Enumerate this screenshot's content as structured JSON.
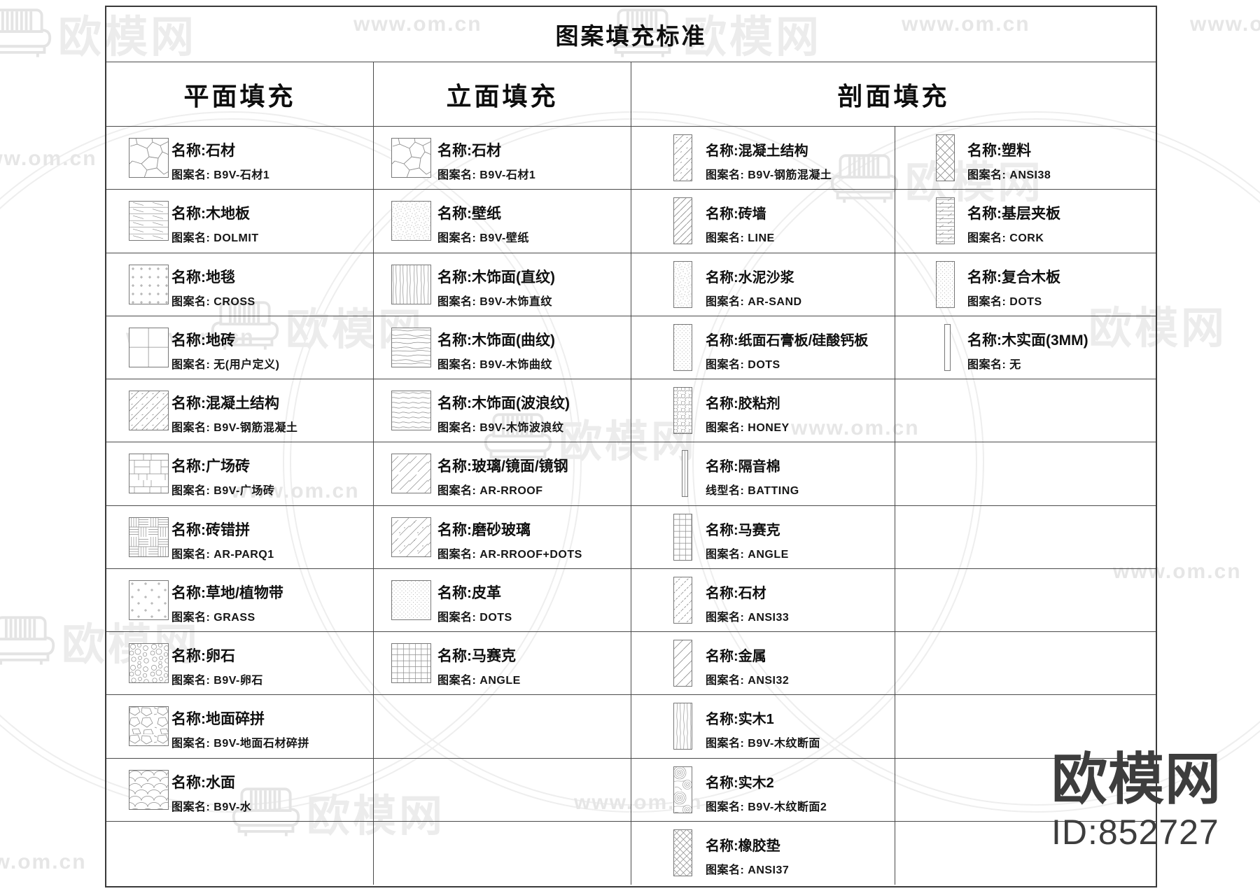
{
  "title": "图案填充标准",
  "rows_per_column": 12,
  "colors": {
    "grid_line": "#4a4a4a",
    "outer_border": "#3a3a3a",
    "text": "#101010",
    "pattern_stroke": "#8d8d8d",
    "watermark_light": "#ececec",
    "watermark_dark": "#3d3d3d"
  },
  "columns": [
    {
      "header": "平面填充",
      "items": [
        {
          "name_text": "名称:石材",
          "code_text": "图案名: B9V-石材1",
          "pattern": "stone",
          "swatch": "square"
        },
        {
          "name_text": "名称:木地板",
          "code_text": "图案名: DOLMIT",
          "pattern": "dolmit",
          "swatch": "square"
        },
        {
          "name_text": "名称:地毯",
          "code_text": "图案名: CROSS",
          "pattern": "cross",
          "swatch": "square"
        },
        {
          "name_text": "名称:地砖",
          "code_text": "图案名: 无(用户定义)",
          "pattern": "quad",
          "swatch": "square"
        },
        {
          "name_text": "名称:混凝土结构",
          "code_text": "图案名: B9V-钢筋混凝土",
          "pattern": "rebar",
          "swatch": "square"
        },
        {
          "name_text": "名称:广场砖",
          "code_text": "图案名: B9V-广场砖",
          "pattern": "plaza",
          "swatch": "square"
        },
        {
          "name_text": "名称:砖错拼",
          "code_text": "图案名: AR-PARQ1",
          "pattern": "parquet",
          "swatch": "square"
        },
        {
          "name_text": "名称:草地/植物带",
          "code_text": "图案名: GRASS",
          "pattern": "grass",
          "swatch": "square"
        },
        {
          "name_text": "名称:卵石",
          "code_text": "图案名: B9V-卵石",
          "pattern": "pebble",
          "swatch": "square"
        },
        {
          "name_text": "名称:地面碎拼",
          "code_text": "图案名: B9V-地面石材碎拼",
          "pattern": "crazy",
          "swatch": "square"
        },
        {
          "name_text": "名称:水面",
          "code_text": "图案名: B9V-水",
          "pattern": "water",
          "swatch": "square"
        }
      ]
    },
    {
      "header": "立面填充",
      "items": [
        {
          "name_text": "名称:石材",
          "code_text": "图案名: B9V-石材1",
          "pattern": "stone",
          "swatch": "square"
        },
        {
          "name_text": "名称:壁纸",
          "code_text": "图案名: B9V-壁纸",
          "pattern": "stipple",
          "swatch": "square"
        },
        {
          "name_text": "名称:木饰面(直纹)",
          "code_text": "图案名: B9V-木饰直纹",
          "pattern": "woodv",
          "swatch": "square"
        },
        {
          "name_text": "名称:木饰面(曲纹)",
          "code_text": "图案名: B9V-木饰曲纹",
          "pattern": "woodcurve",
          "swatch": "square"
        },
        {
          "name_text": "名称:木饰面(波浪纹)",
          "code_text": "图案名: B9V-木饰波浪纹",
          "pattern": "wave",
          "swatch": "square"
        },
        {
          "name_text": "名称:玻璃/镜面/镜钢",
          "code_text": "图案名: AR-RROOF",
          "pattern": "glass",
          "swatch": "square"
        },
        {
          "name_text": "名称:磨砂玻璃",
          "code_text": "图案名: AR-RROOF+DOTS",
          "pattern": "glassdots",
          "swatch": "square"
        },
        {
          "name_text": "名称:皮革",
          "code_text": "图案名: DOTS",
          "pattern": "dotsfine",
          "swatch": "square"
        },
        {
          "name_text": "名称:马赛克",
          "code_text": "图案名: ANGLE",
          "pattern": "anglegrid",
          "swatch": "square"
        }
      ]
    },
    {
      "header": "剖面填充",
      "subcolumns": [
        {
          "items": [
            {
              "name_text": "名称:混凝土结构",
              "code_text": "图案名: B9V-钢筋混凝土",
              "pattern": "rebar",
              "swatch": "tall"
            },
            {
              "name_text": "名称:砖墙",
              "code_text": "图案名: LINE",
              "pattern": "linehatch",
              "swatch": "tall"
            },
            {
              "name_text": "名称:水泥沙浆",
              "code_text": "图案名: AR-SAND",
              "pattern": "stipple",
              "swatch": "tall"
            },
            {
              "name_text": "名称:纸面石膏板/硅酸钙板",
              "code_text": "图案名: DOTS",
              "pattern": "dotsfine",
              "swatch": "tall"
            },
            {
              "name_text": "名称:胶粘剂",
              "code_text": "图案名: HONEY",
              "pattern": "honey",
              "swatch": "tall"
            },
            {
              "name_text": "名称:隔音棉",
              "code_text": "线型名: BATTING",
              "pattern": "vline",
              "swatch": "thin"
            },
            {
              "name_text": "名称:马赛克",
              "code_text": "图案名: ANGLE",
              "pattern": "anglegrid",
              "swatch": "tall"
            },
            {
              "name_text": "名称:石材",
              "code_text": "图案名: ANSI33",
              "pattern": "ansi33",
              "swatch": "tall"
            },
            {
              "name_text": "名称:金属",
              "code_text": "图案名: ANSI32",
              "pattern": "ansi32",
              "swatch": "tall"
            },
            {
              "name_text": "名称:实木1",
              "code_text": "图案名: B9V-木纹断面",
              "pattern": "woodsec",
              "swatch": "tall"
            },
            {
              "name_text": "名称:实木2",
              "code_text": "图案名: B9V-木纹断面2",
              "pattern": "burl",
              "swatch": "tall"
            },
            {
              "name_text": "名称:橡胶垫",
              "code_text": "图案名: ANSI37",
              "pattern": "ansi37",
              "swatch": "tall"
            }
          ]
        },
        {
          "items": [
            {
              "name_text": "名称:塑料",
              "code_text": "图案名: ANSI38",
              "pattern": "ansi38",
              "swatch": "tall"
            },
            {
              "name_text": "名称:基层夹板",
              "code_text": "图案名: CORK",
              "pattern": "cork",
              "swatch": "tall"
            },
            {
              "name_text": "名称:复合木板",
              "code_text": "图案名: DOTS",
              "pattern": "dotsfine",
              "swatch": "tall"
            },
            {
              "name_text": "名称:木实面(3MM)",
              "code_text": "图案名: 无",
              "pattern": "none",
              "swatch": "thin"
            }
          ]
        }
      ]
    }
  ],
  "watermarks": {
    "brand": "欧模网",
    "site": "www.om.cn",
    "footer_brand": "欧模网",
    "footer_id": "ID:852727"
  }
}
